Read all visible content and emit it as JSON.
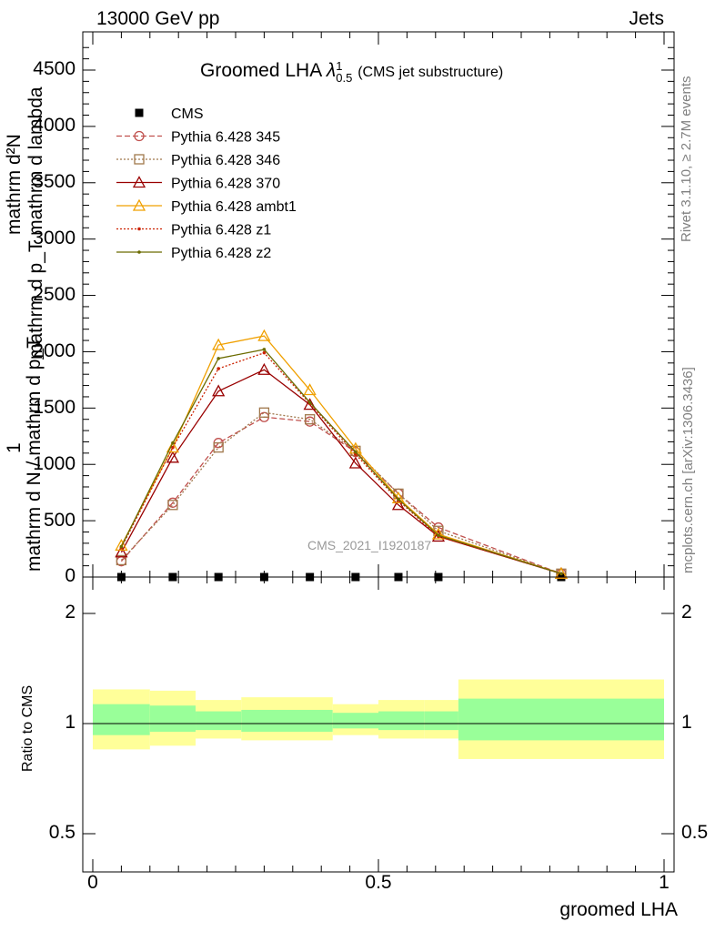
{
  "header": {
    "beam": "13000 GeV pp",
    "process": "Jets"
  },
  "side_labels": {
    "rivet": "Rivet 3.1.10, ≥ 2.7M events",
    "mcplots": "mcplots.cern.ch [arXiv:1306.3436]"
  },
  "chart_data": {
    "type": "line",
    "title": "Groomed LHA",
    "title_symbol": "λ",
    "title_sup": "1",
    "title_sub": "0.5",
    "title_note": "(CMS jet substructure)",
    "watermark": "CMS_2021_I1920187",
    "xlabel": "groomed LHA",
    "ylabel_top_numerator": "mathrm d²N",
    "ylabel_top_fraction": "1",
    "ylabel_top_denominator": "mathrm d N / mathrm d p_T",
    "ylabel_top_den_line": "mathrm d p_T mathrm d lambda",
    "ylabel_ratio": "Ratio to CMS",
    "xlim": [
      0,
      1
    ],
    "ylim_main": [
      0,
      4800
    ],
    "ylim_ratio": [
      0.4,
      2.3
    ],
    "y_ticks_main": [
      "0",
      "500",
      "1000",
      "1500",
      "2000",
      "2500",
      "3000",
      "3500",
      "4000",
      "4500"
    ],
    "y_ticks_ratio": [
      "0.5",
      "1",
      "2"
    ],
    "x_ticks": [
      "0",
      "0.5",
      "1"
    ],
    "bin_edges": [
      0,
      0.1,
      0.18,
      0.26,
      0.34,
      0.42,
      0.5,
      0.58,
      0.64,
      1.0
    ],
    "data_x": [
      0.05,
      0.14,
      0.22,
      0.3,
      0.38,
      0.46,
      0.535,
      0.605,
      0.82
    ],
    "series": [
      {
        "name": "CMS",
        "color": "#000000",
        "marker": "square-filled",
        "dash": "none",
        "values": [
          0,
          0,
          0,
          0,
          0,
          0,
          0,
          0,
          0
        ]
      },
      {
        "name": "Pythia 6.428 345",
        "color": "#c0504d",
        "marker": "circle",
        "dash": "6,3",
        "values": [
          140,
          660,
          1190,
          1420,
          1380,
          1110,
          740,
          440,
          30
        ]
      },
      {
        "name": "Pythia 6.428 346",
        "color": "#a0784c",
        "marker": "square",
        "dash": "2,2",
        "values": [
          150,
          640,
          1150,
          1460,
          1400,
          1120,
          740,
          410,
          30
        ]
      },
      {
        "name": "Pythia 6.428 370",
        "color": "#990000",
        "marker": "triangle",
        "dash": "none",
        "values": [
          220,
          1060,
          1650,
          1840,
          1530,
          1010,
          640,
          360,
          30
        ]
      },
      {
        "name": "Pythia 6.428 ambt1",
        "color": "#f0a000",
        "marker": "triangle",
        "dash": "none",
        "values": [
          280,
          1150,
          2060,
          2140,
          1660,
          1140,
          700,
          380,
          30
        ]
      },
      {
        "name": "Pythia 6.428 z1",
        "color": "#cc2200",
        "marker": "dot",
        "dash": "2,2",
        "values": [
          260,
          1150,
          1850,
          1990,
          1540,
          1090,
          680,
          360,
          30
        ]
      },
      {
        "name": "Pythia 6.428 z2",
        "color": "#6b6b00",
        "marker": "dot",
        "dash": "none",
        "values": [
          270,
          1190,
          1940,
          2020,
          1550,
          1110,
          690,
          370,
          30
        ]
      }
    ],
    "ratio_band_inner": [
      [
        0.93,
        1.13
      ],
      [
        0.95,
        1.12
      ],
      [
        0.96,
        1.08
      ],
      [
        0.95,
        1.09
      ],
      [
        0.95,
        1.09
      ],
      [
        0.97,
        1.07
      ],
      [
        0.96,
        1.08
      ],
      [
        0.96,
        1.08
      ],
      [
        0.9,
        1.17
      ]
    ],
    "ratio_band_outer": [
      [
        0.85,
        1.24
      ],
      [
        0.87,
        1.23
      ],
      [
        0.91,
        1.16
      ],
      [
        0.9,
        1.18
      ],
      [
        0.9,
        1.18
      ],
      [
        0.93,
        1.13
      ],
      [
        0.91,
        1.16
      ],
      [
        0.91,
        1.16
      ],
      [
        0.8,
        1.32
      ]
    ],
    "band_colors": {
      "outer": "#ffff99",
      "inner": "#99ff99"
    },
    "grid": false,
    "legend_position": "top-left"
  }
}
